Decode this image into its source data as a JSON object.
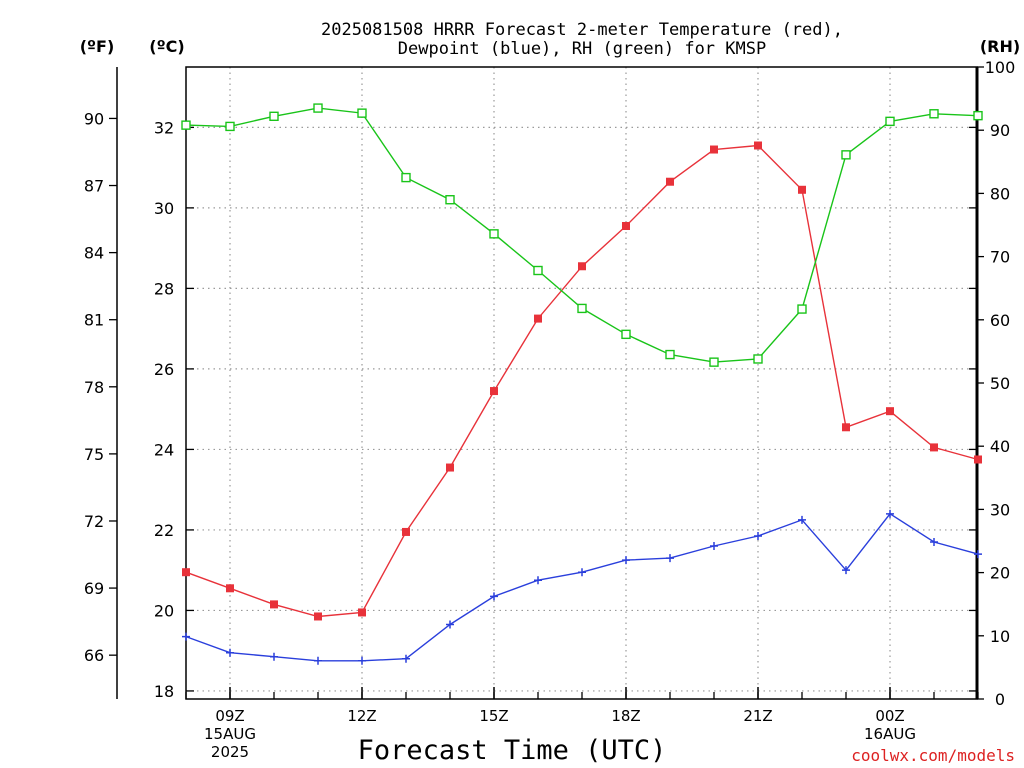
{
  "title_line1": "2025081508 HRRR Forecast 2-meter Temperature (red),",
  "title_line2": "Dewpoint (blue), RH (green) for KMSP",
  "unit_f": "(ºF)",
  "unit_c": "(ºC)",
  "unit_rh": "(RH)",
  "xlabel": "Forecast Time (UTC)",
  "credit": "coolwx.com/models",
  "colors": {
    "temperature": "#e8323a",
    "dewpoint": "#2a3fdc",
    "rh": "#19c419",
    "grid": "#9a9a9a"
  },
  "chart_data": {
    "type": "line",
    "x": [
      "08Z",
      "09Z",
      "10Z",
      "11Z",
      "12Z",
      "13Z",
      "14Z",
      "15Z",
      "16Z",
      "17Z",
      "18Z",
      "19Z",
      "20Z",
      "21Z",
      "22Z",
      "23Z",
      "00Z",
      "01Z",
      "02Z"
    ],
    "x_tick_labels": [
      {
        "hour": "09Z",
        "lines": [
          "09Z",
          "15AUG",
          "2025"
        ]
      },
      {
        "hour": "12Z",
        "lines": [
          "12Z"
        ]
      },
      {
        "hour": "15Z",
        "lines": [
          "15Z"
        ]
      },
      {
        "hour": "18Z",
        "lines": [
          "18Z"
        ]
      },
      {
        "hour": "21Z",
        "lines": [
          "21Z"
        ]
      },
      {
        "hour": "00Z",
        "lines": [
          "00Z",
          "16AUG"
        ]
      }
    ],
    "series": [
      {
        "name": "Temperature",
        "axis": "C",
        "marker": "filled-square",
        "values": [
          20.95,
          20.55,
          20.15,
          19.85,
          19.95,
          21.95,
          23.55,
          25.45,
          27.25,
          28.55,
          29.55,
          30.65,
          31.45,
          31.55,
          30.45,
          24.55,
          24.95,
          24.05,
          23.75
        ]
      },
      {
        "name": "Dewpoint",
        "axis": "C",
        "marker": "plus",
        "values": [
          19.35,
          18.95,
          18.85,
          18.75,
          18.75,
          18.8,
          19.65,
          20.35,
          20.75,
          20.95,
          21.25,
          21.3,
          21.6,
          21.85,
          22.25,
          21.0,
          22.4,
          21.7,
          21.4
        ]
      },
      {
        "name": "RH",
        "axis": "RH",
        "marker": "open-square",
        "values": [
          90.8,
          90.6,
          92.2,
          93.5,
          92.7,
          82.5,
          79.0,
          73.6,
          67.8,
          61.8,
          57.7,
          54.5,
          53.3,
          53.8,
          61.7,
          86.1,
          91.4,
          92.6,
          92.3
        ]
      }
    ],
    "y_left_C": {
      "range": [
        17.8,
        33.5
      ],
      "ticks": [
        18,
        20,
        22,
        24,
        26,
        28,
        30,
        32
      ]
    },
    "y_left_F": {
      "ticks": [
        66,
        69,
        72,
        75,
        78,
        81,
        84,
        87,
        90
      ]
    },
    "y_right_RH": {
      "range": [
        0,
        100
      ],
      "ticks": [
        0,
        10,
        20,
        30,
        40,
        50,
        60,
        70,
        80,
        90,
        100
      ]
    },
    "grid": true
  }
}
